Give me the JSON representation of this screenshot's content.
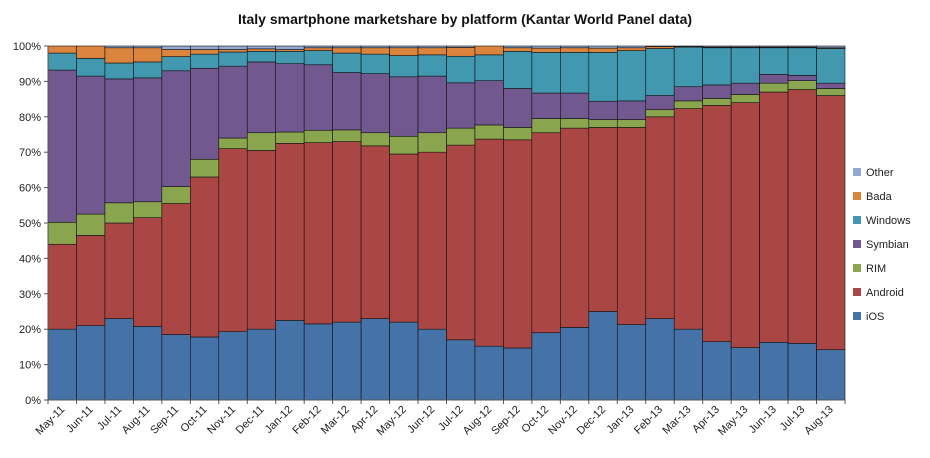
{
  "chart_data": {
    "type": "bar",
    "stacked": true,
    "title": "Italy smartphone marketshare by platform (Kantar World Panel data)",
    "xlabel": "",
    "ylabel": "",
    "ylim": [
      0,
      100
    ],
    "y_ticks": [
      "0%",
      "10%",
      "20%",
      "30%",
      "40%",
      "50%",
      "60%",
      "70%",
      "80%",
      "90%",
      "100%"
    ],
    "grid": false,
    "legend_position": "right",
    "categories": [
      "May-11",
      "Jun-11",
      "Jul-11",
      "Aug-11",
      "Sep-11",
      "Oct-11",
      "Nov-11",
      "Dec-11",
      "Jan-12",
      "Feb-12",
      "Mar-12",
      "Apr-12",
      "May-12",
      "Jun-12",
      "Jul-12",
      "Aug-12",
      "Sep-12",
      "Oct-12",
      "Nov-12",
      "Dec-12",
      "Jan-13",
      "Feb-13",
      "Mar-13",
      "Apr-13",
      "May-13",
      "Jun-13",
      "Jul-13",
      "Aug-13"
    ],
    "series": [
      {
        "name": "iOS",
        "color": "#4572A7",
        "values": [
          20.0,
          21.0,
          23.0,
          20.8,
          18.5,
          17.8,
          19.3,
          20.0,
          22.5,
          21.5,
          22.0,
          23.0,
          22.0,
          20.0,
          17.0,
          15.2,
          14.7,
          19.0,
          20.5,
          25.0,
          21.3,
          23.0,
          20.0,
          16.5,
          14.8,
          16.3,
          16.0,
          14.2
        ]
      },
      {
        "name": "Android",
        "color": "#AA4643",
        "values": [
          24.0,
          25.5,
          27.0,
          30.7,
          37.0,
          45.2,
          51.7,
          50.5,
          50.0,
          51.2,
          51.0,
          48.8,
          47.5,
          50.0,
          55.0,
          58.5,
          58.8,
          56.5,
          56.3,
          52.0,
          55.7,
          57.0,
          62.3,
          66.7,
          69.2,
          70.7,
          71.7,
          71.8
        ]
      },
      {
        "name": "RIM",
        "color": "#89A54E",
        "values": [
          6.2,
          6.0,
          5.7,
          4.5,
          4.8,
          5.0,
          3.0,
          5.0,
          3.2,
          3.5,
          3.3,
          3.7,
          5.0,
          5.5,
          4.8,
          4.0,
          3.5,
          4.0,
          2.7,
          2.2,
          2.2,
          2.0,
          2.2,
          2.0,
          2.3,
          2.5,
          2.5,
          2.0
        ]
      },
      {
        "name": "Symbian",
        "color": "#71588F",
        "values": [
          43.0,
          39.0,
          35.0,
          35.0,
          32.7,
          25.7,
          20.3,
          20.0,
          19.3,
          18.5,
          16.2,
          16.7,
          16.8,
          16.0,
          12.8,
          12.5,
          11.0,
          7.2,
          7.2,
          5.2,
          5.3,
          4.0,
          4.0,
          3.8,
          3.2,
          2.5,
          1.5,
          1.5
        ]
      },
      {
        "name": "Windows",
        "color": "#4198AF",
        "values": [
          4.8,
          5.0,
          4.5,
          4.5,
          4.0,
          4.0,
          4.0,
          3.0,
          3.5,
          4.0,
          5.5,
          5.5,
          6.0,
          6.0,
          7.5,
          7.3,
          10.5,
          11.5,
          11.5,
          13.8,
          14.2,
          13.3,
          11.2,
          10.5,
          10.0,
          7.5,
          7.8,
          9.8
        ]
      },
      {
        "name": "Bada",
        "color": "#DB843D",
        "values": [
          2.0,
          3.5,
          4.3,
          4.0,
          2.0,
          1.3,
          0.7,
          0.7,
          0.5,
          0.8,
          1.5,
          1.8,
          2.2,
          2.0,
          2.5,
          2.5,
          1.0,
          1.2,
          1.3,
          1.2,
          0.8,
          0.5,
          0.2,
          0.2,
          0.2,
          0.2,
          0.2,
          0.2
        ]
      },
      {
        "name": "Other",
        "color": "#93A9CF",
        "values": [
          0.0,
          0.0,
          0.5,
          0.5,
          1.0,
          1.0,
          1.0,
          0.8,
          1.0,
          0.5,
          0.5,
          0.5,
          0.5,
          0.5,
          0.4,
          0.0,
          0.5,
          0.6,
          0.5,
          0.6,
          0.5,
          0.2,
          0.1,
          0.3,
          0.3,
          0.3,
          0.3,
          0.5
        ]
      }
    ]
  }
}
